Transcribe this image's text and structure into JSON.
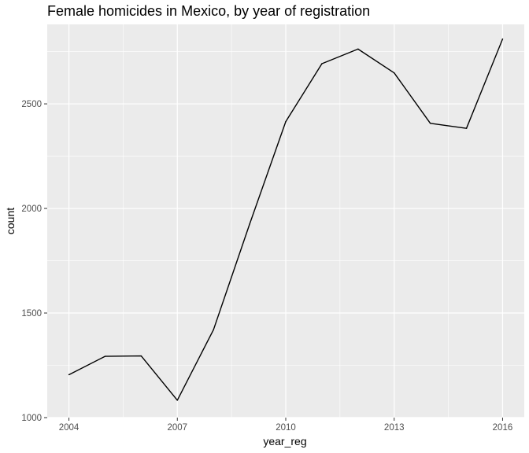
{
  "chart_data": {
    "type": "line",
    "title": "Female homicides in Mexico, by year of registration",
    "xlabel": "year_reg",
    "ylabel": "count",
    "x": [
      2004,
      2005,
      2006,
      2007,
      2008,
      2009,
      2010,
      2011,
      2012,
      2013,
      2014,
      2015,
      2016
    ],
    "series": [
      {
        "values": [
          1205,
          1293,
          1295,
          1083,
          1420,
          1925,
          2415,
          2692,
          2762,
          2648,
          2407,
          2383,
          2810
        ]
      }
    ],
    "xlim": [
      2003.4,
      2016.6
    ],
    "ylim": [
      1000,
      2880
    ],
    "x_ticks": [
      2004,
      2007,
      2010,
      2013,
      2016
    ],
    "y_ticks": [
      1000,
      1500,
      2000,
      2500
    ],
    "x_tick_labels": [
      "2004",
      "2007",
      "2010",
      "2013",
      "2016"
    ],
    "y_tick_labels": [
      "1000",
      "1500",
      "2000",
      "2500"
    ],
    "grid": true,
    "line_color": "#000000",
    "panel_color": "#ebebeb",
    "grid_color": "#ffffff"
  }
}
